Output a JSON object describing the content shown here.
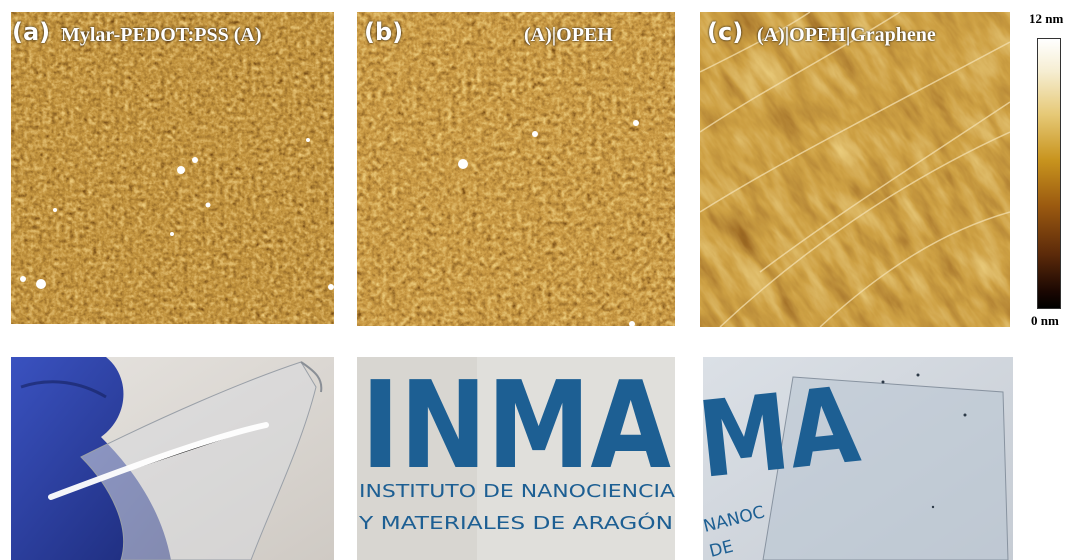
{
  "panels": [
    {
      "letter": "(a)",
      "title": "Mylar-PEDOT:PSS (A)"
    },
    {
      "letter": "(b)",
      "title": "(A)|OPEH"
    },
    {
      "letter": "(c)",
      "title": "(A)|OPEH|Graphene"
    }
  ],
  "scale": {
    "max_label": "12 nm",
    "min_label": "0 nm"
  },
  "photo_b": {
    "logo_text": "INMA",
    "line1": "INSTITUTO DE NANOCIENCIA",
    "line2": "Y MATERIALES DE ARAGÓN"
  },
  "photo_c": {
    "logo_text": "MA",
    "fragment1": "NANOC",
    "fragment2": "DE"
  },
  "colors": {
    "afm_dark": "#2a1204",
    "afm_mid": "#8a4a0c",
    "afm_bright": "#e8b04a",
    "glove_blue": "#2c3fa0",
    "logo_blue": "#1d5f93"
  }
}
